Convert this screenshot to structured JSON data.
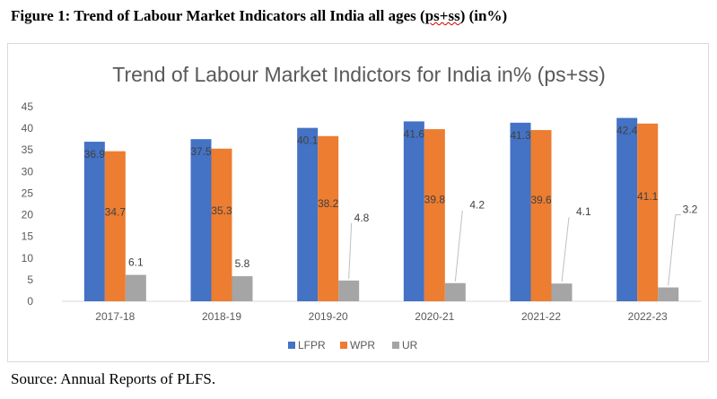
{
  "caption": {
    "prefix": "Figure 1: Trend of Labour Market Indicators all India all ages (",
    "squiggle": "ps+ss",
    "suffix": ") (in%)"
  },
  "source": "Source: Annual Reports of PLFS.",
  "chart_data": {
    "type": "bar",
    "title": "Trend of Labour Market Indictors for India in% (ps+ss)",
    "xlabel": "",
    "ylabel": "",
    "ylim": [
      0,
      45
    ],
    "yticks": [
      0,
      5,
      10,
      15,
      20,
      25,
      30,
      35,
      40,
      45
    ],
    "grid": false,
    "legend_position": "bottom",
    "categories": [
      "2017-18",
      "2018-19",
      "2019-20",
      "2020-21",
      "2021-22",
      "2022-23"
    ],
    "series": [
      {
        "name": "LFPR",
        "color": "#4472c4",
        "values": [
          36.9,
          37.5,
          40.1,
          41.6,
          41.3,
          42.4
        ]
      },
      {
        "name": "WPR",
        "color": "#ed7d31",
        "values": [
          34.7,
          35.3,
          38.2,
          39.8,
          39.6,
          41.1
        ]
      },
      {
        "name": "UR",
        "color": "#a5a5a5",
        "values": [
          6.1,
          5.8,
          4.8,
          4.2,
          4.1,
          3.2
        ]
      }
    ]
  }
}
